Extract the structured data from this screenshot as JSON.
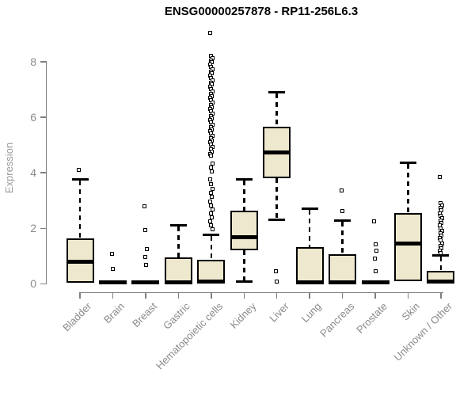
{
  "chart_data": {
    "type": "boxplot",
    "title": "ENSG00000257878 - RP11-256L6.3",
    "ylabel": "Expression",
    "xlabel": "",
    "ylim": [
      0,
      9.2
    ],
    "yticks": [
      0,
      2,
      4,
      6,
      8
    ],
    "grid": false,
    "legend": "none",
    "categories": [
      "Bladder",
      "Brain",
      "Breast",
      "Gastric",
      "Hematopoietic cells",
      "Kidney",
      "Liver",
      "Lung",
      "Pancreas",
      "Prostate",
      "Skin",
      "Unknown / Other"
    ],
    "boxes": [
      {
        "category": "Bladder",
        "whisker_low": null,
        "q1": 0.05,
        "median": 0.8,
        "q3": 1.63,
        "whisker_high": 3.75,
        "outliers": [
          4.1
        ]
      },
      {
        "category": "Brain",
        "whisker_low": null,
        "q1": 0.0,
        "median": 0.04,
        "q3": 0.13,
        "whisker_high": null,
        "outliers": [
          1.07,
          0.53
        ]
      },
      {
        "category": "Breast",
        "whisker_low": null,
        "q1": 0.0,
        "median": 0.04,
        "q3": 0.13,
        "whisker_high": null,
        "outliers": [
          2.8,
          1.92,
          1.24,
          0.95,
          0.69
        ]
      },
      {
        "category": "Gastric",
        "whisker_low": null,
        "q1": 0.02,
        "median": 0.06,
        "q3": 0.95,
        "whisker_high": 2.1,
        "outliers": []
      },
      {
        "category": "Hematopoietic cells",
        "whisker_low": null,
        "q1": 0.0,
        "median": 0.08,
        "q3": 0.85,
        "whisker_high": 1.75,
        "outliers": [
          9.02,
          8.2,
          8.12,
          8.04,
          7.96,
          7.88,
          7.8,
          7.72,
          7.64,
          7.56,
          7.48,
          7.4,
          7.32,
          7.24,
          7.16,
          7.08,
          7.0,
          6.92,
          6.84,
          6.76,
          6.68,
          6.6,
          6.52,
          6.44,
          6.36,
          6.28,
          6.2,
          6.12,
          6.04,
          5.96,
          5.88,
          5.8,
          5.72,
          5.64,
          5.56,
          5.48,
          5.4,
          5.32,
          5.24,
          5.16,
          5.08,
          5.0,
          4.92,
          4.84,
          4.76,
          4.68,
          4.6,
          4.32,
          4.18,
          4.05,
          3.75,
          3.58,
          3.42,
          3.27,
          3.12,
          2.97,
          2.82,
          2.67,
          2.52,
          2.38,
          2.24,
          2.1,
          1.97
        ]
      },
      {
        "category": "Kidney",
        "whisker_low": 0.07,
        "q1": 1.2,
        "median": 1.68,
        "q3": 2.62,
        "whisker_high": 3.75,
        "outliers": []
      },
      {
        "category": "Liver",
        "whisker_low": 2.3,
        "q1": 3.8,
        "median": 4.72,
        "q3": 5.66,
        "whisker_high": 6.88,
        "outliers": [
          0.45,
          0.07
        ]
      },
      {
        "category": "Lung",
        "whisker_low": null,
        "q1": 0.02,
        "median": 0.06,
        "q3": 1.32,
        "whisker_high": 2.7,
        "outliers": []
      },
      {
        "category": "Pancreas",
        "whisker_low": null,
        "q1": 0.02,
        "median": 0.06,
        "q3": 1.05,
        "whisker_high": 2.28,
        "outliers": [
          3.35,
          2.62
        ]
      },
      {
        "category": "Prostate",
        "whisker_low": null,
        "q1": 0.0,
        "median": 0.04,
        "q3": 0.13,
        "whisker_high": null,
        "outliers": [
          2.25,
          1.43,
          1.2,
          0.9,
          0.45
        ]
      },
      {
        "category": "Skin",
        "whisker_low": null,
        "q1": 0.1,
        "median": 1.45,
        "q3": 2.55,
        "whisker_high": 4.35,
        "outliers": []
      },
      {
        "category": "Unknown / Other",
        "whisker_low": null,
        "q1": 0.02,
        "median": 0.08,
        "q3": 0.46,
        "whisker_high": 1.02,
        "outliers": [
          3.85,
          2.9,
          2.81,
          2.72,
          2.63,
          2.54,
          2.45,
          2.36,
          2.27,
          2.18,
          2.09,
          2.0,
          1.91,
          1.82,
          1.73,
          1.64,
          1.55,
          1.46,
          1.37,
          1.28,
          1.19,
          1.1
        ]
      }
    ],
    "colors": {
      "box_fill": "#ede8ce",
      "box_line": "#000000",
      "axis": "#7f7f7f",
      "tick_label": "#8a8a8a",
      "title": "#000000",
      "background": "#ffffff"
    }
  }
}
